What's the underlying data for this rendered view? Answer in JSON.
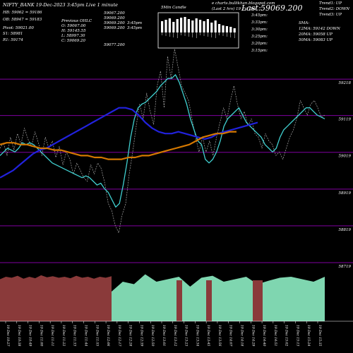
{
  "header": {
    "title": "NIFTY_BANK 19-Dec-2023 3:45pm Live  1 minute",
    "hb": "HB: 59062  =  59186",
    "ob": "OB: 58947  =  59183",
    "pivot": "Pivot: 59021.00",
    "s1": "S1: 58981",
    "r1": "R1: 59174",
    "prev_ohlc": "Previous OHLC",
    "prev_o": "O: 59067.00",
    "prev_h": "H: 59145.55",
    "prev_l": "L: 58997.30",
    "prev_c": "C: 59069.20",
    "candle_lines": [
      "59067.200",
      "59069.200",
      "59069.200",
      "3:45pm",
      "59069.200",
      "3:45pm",
      "59077.200"
    ],
    "candle_label": "5Min Candle",
    "site": "e charts.bullikhan.blogspot.com",
    "legend_time": "(Last 2 hrs) 19 Fri  Dec",
    "last_price_prefix": "Last:",
    "last_price": "59069.200",
    "time_labels": [
      "3:45pm:",
      "3:33pm:",
      "3:30pm:",
      "3:25pm:",
      "3:20pm:",
      "3:15pm:"
    ],
    "trend1": "Trend1: UP",
    "trend2": "Trend2: DOWN",
    "trend3": "Trend3: UP",
    "sma_title": "SMA:",
    "sma12": "12MA: 59142  DOWN",
    "sma20": "20MA: 59058  UP",
    "sma50": "50MA: 59083  UP"
  },
  "colors": {
    "background": "#000000",
    "price": "#aaaaaa",
    "fast_ma": "#40d0d0",
    "mid_ma": "#2222dd",
    "slow_ma": "#d47800",
    "grid": "#8000a0",
    "volume_up": "#7fd6b0",
    "volume_down": "#8a3a3a"
  },
  "chart_data": {
    "type": "line",
    "title": "NIFTY_BANK 19-Dec-2023 3:45pm Live  1 minute",
    "y_ticks": [
      59218,
      59119,
      59019,
      58919,
      58819,
      58719
    ],
    "ylim": [
      58719,
      59318
    ],
    "grid": true,
    "x_ticks": [
      "19 Dec 10:27",
      "19 Dec 10:38",
      "19 Dec 10:49",
      "19 Dec 11:00",
      "19 Dec 11:11",
      "19 Dec 11:22",
      "19 Dec 11:33",
      "19 Dec 11:44",
      "19 Dec 11:55",
      "19 Dec 12:06",
      "19 Dec 12:17",
      "19 Dec 12:28",
      "19 Dec 12:39",
      "19 Dec 12:50",
      "19 Dec 13:01",
      "19 Dec 13:12",
      "19 Dec 13:23",
      "19 Dec 13:34",
      "19 Dec 13:45",
      "19 Dec 13:56",
      "19 Dec 14:07",
      "19 Dec 14:18",
      "19 Dec 14:29",
      "19 Dec 14:40",
      "19 Dec 14:51",
      "19 Dec 15:02",
      "19 Dec 15:13",
      "19 Dec 15:24",
      "19 Dec 15:35"
    ],
    "series": [
      {
        "values": [
          59030,
          59045,
          59010,
          59060,
          59025,
          59070,
          59040,
          59085,
          59055,
          59035,
          59075,
          59045,
          59010,
          59060,
          59030,
          59050,
          59005,
          59035,
          58985,
          59020,
          59000,
          58960,
          58990,
          58970,
          58950,
          58940,
          58985,
          58960,
          58990,
          58975,
          58935,
          58880,
          58860,
          58820,
          58800,
          58850,
          58880,
          58960,
          59020,
          59090,
          59150,
          59110,
          59180,
          59130,
          59095,
          59200,
          59240,
          59140,
          59280,
          59220,
          59300,
          59250,
          59200,
          59180,
          59160,
          59110,
          59060,
          59020,
          59060,
          59020,
          59050,
          59010,
          59060,
          59100,
          59140,
          59110,
          59160,
          59200,
          59150,
          59110,
          59130,
          59090,
          59110,
          59070,
          59060,
          59030,
          59070,
          59050,
          59040,
          59010,
          59020,
          59000,
          59030,
          59060,
          59080,
          59110,
          59160,
          59140,
          59120,
          59150,
          59160,
          59140,
          59115,
          59120
        ]
      },
      {
        "values": [
          59010,
          59020,
          59030,
          59025,
          59020,
          59030,
          59045,
          59040,
          59045,
          59040,
          59030,
          59020,
          59010,
          59000,
          58990,
          58985,
          58980,
          58975,
          58970,
          58965,
          58960,
          58955,
          58950,
          58955,
          58950,
          58940,
          58930,
          58935,
          58920,
          58910,
          58890,
          58870,
          58880,
          58930,
          58990,
          59060,
          59110,
          59140,
          59150,
          59155,
          59165,
          59175,
          59185,
          59200,
          59210,
          59220,
          59220,
          59230,
          59210,
          59180,
          59150,
          59110,
          59080,
          59050,
          59040,
          59000,
          58990,
          59000,
          59020,
          59050,
          59090,
          59110,
          59120,
          59130,
          59140,
          59120,
          59100,
          59090,
          59080,
          59070,
          59060,
          59040,
          59030,
          59020,
          59030,
          59060,
          59080,
          59090,
          59100,
          59110,
          59120,
          59130,
          59140,
          59140,
          59130,
          59120,
          59115,
          59110
        ]
      },
      {
        "values": [
          58950,
          58960,
          58970,
          58985,
          59000,
          59015,
          59025,
          59030,
          59040,
          59050,
          59060,
          59070,
          59080,
          59090,
          59100,
          59110,
          59120,
          59130,
          59140,
          59140,
          59135,
          59120,
          59100,
          59085,
          59075,
          59070,
          59070,
          59075,
          59070,
          59065,
          59060,
          59055,
          59060,
          59070,
          59075,
          59080,
          59085,
          59090,
          59095,
          59100
        ]
      },
      {
        "values": [
          59040,
          59045,
          59045,
          59040,
          59040,
          59035,
          59030,
          59030,
          59025,
          59025,
          59020,
          59015,
          59010,
          59010,
          59005,
          59005,
          59000,
          59000,
          59000,
          59005,
          59005,
          59010,
          59010,
          59015,
          59020,
          59025,
          59030,
          59035,
          59040,
          59050,
          59060,
          59065,
          59070,
          59070,
          59075,
          59075
        ]
      }
    ],
    "volume": [
      {
        "values": [
          0.85,
          0.9,
          0.88,
          0.92,
          0.86,
          0.9,
          0.87,
          0.93,
          0.89,
          0.91,
          0.88,
          0.9,
          0.87,
          0.92,
          0.88,
          0.9,
          0.86,
          0.9,
          0.88,
          0.91
        ]
      },
      {
        "values": [
          0.6,
          0.8,
          0.75,
          0.95,
          0.8,
          0.85,
          0.9,
          0.7,
          0.88,
          0.92,
          0.8,
          0.85,
          0.9,
          0.75,
          0.82,
          0.88,
          0.9,
          0.85,
          0.8,
          0.9
        ]
      }
    ]
  }
}
